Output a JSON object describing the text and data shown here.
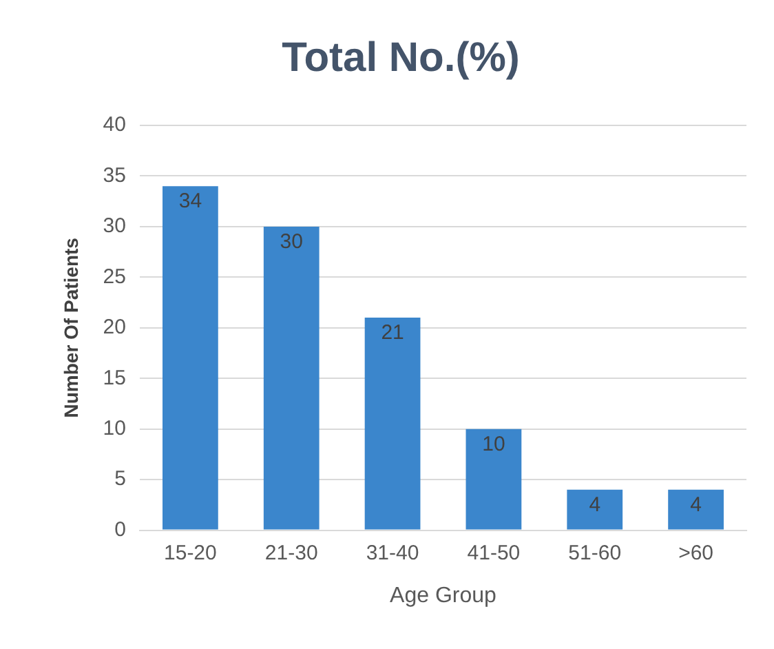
{
  "chart_data": {
    "type": "bar",
    "title": "Total No.(%)",
    "xlabel": "Age Group",
    "ylabel": "Number Of Patients",
    "categories": [
      "15-20",
      "21-30",
      "31-40",
      "41-50",
      "51-60",
      ">60"
    ],
    "values": [
      34,
      30,
      21,
      10,
      4,
      4
    ],
    "color": "#3b86cc",
    "ylim": [
      0,
      40
    ],
    "yticks": [
      0,
      5,
      10,
      15,
      20,
      25,
      30,
      35,
      40
    ],
    "grid": "y",
    "data_labels": true,
    "legend": false
  }
}
